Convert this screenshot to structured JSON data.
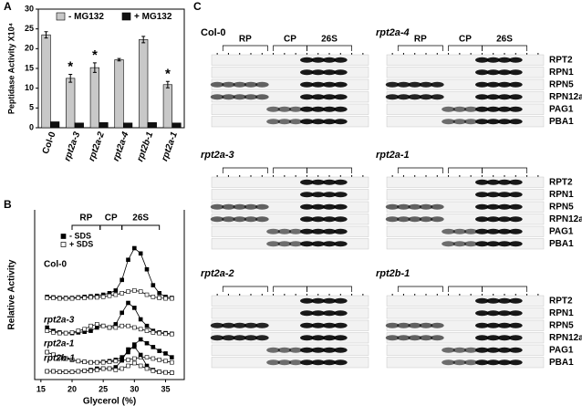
{
  "panel_labels": [
    "A",
    "B",
    "C"
  ],
  "chart_data": [
    {
      "type": "bar",
      "ylabel": "Peptidase Activity X10⁴",
      "categories": [
        "Col-0",
        "rpt2a-3",
        "rpt2a-2",
        "rpt2a-4",
        "rpt2b-1",
        "rpt2a-1"
      ],
      "series": [
        {
          "name": "- MG132",
          "color": "#c8c8c8",
          "values": [
            23.5,
            12.5,
            15.2,
            17.2,
            22.3,
            10.9
          ],
          "errors": [
            0.8,
            1.0,
            1.2,
            0.3,
            0.8,
            0.8
          ]
        },
        {
          "name": "+ MG132",
          "color": "#111111",
          "values": [
            1.5,
            1.2,
            1.3,
            1.2,
            1.3,
            1.2
          ]
        }
      ],
      "significance": [
        null,
        "*",
        "*",
        null,
        null,
        "*"
      ],
      "ylim": [
        0,
        30
      ],
      "yticks": [
        0,
        5,
        10,
        15,
        20,
        25,
        30
      ]
    },
    {
      "type": "line",
      "xlabel": "Glycerol (%)",
      "ylabel": "Relative Activity",
      "fraction_labels": [
        "RP",
        "CP",
        "26S"
      ],
      "legend": [
        "- SDS",
        "+ SDS"
      ],
      "x": [
        16,
        17,
        18,
        19,
        20,
        21,
        22,
        23,
        24,
        25,
        26,
        27,
        28,
        29,
        30,
        31,
        32,
        33,
        34,
        35,
        36
      ],
      "xlim": [
        14,
        38
      ],
      "xticks": [
        15,
        20,
        25,
        30,
        35
      ],
      "ylim": [
        0,
        1
      ],
      "panels": [
        {
          "label": "Col-0",
          "series": [
            {
              "marker": "filled",
              "values": [
                0.08,
                0.07,
                0.06,
                0.06,
                0.06,
                0.07,
                0.08,
                0.09,
                0.1,
                0.12,
                0.15,
                0.2,
                0.4,
                0.78,
                1.0,
                0.9,
                0.6,
                0.3,
                0.15,
                0.08,
                0.06
              ]
            },
            {
              "marker": "open",
              "values": [
                0.06,
                0.06,
                0.05,
                0.05,
                0.05,
                0.06,
                0.06,
                0.07,
                0.07,
                0.08,
                0.1,
                0.12,
                0.15,
                0.18,
                0.2,
                0.18,
                0.12,
                0.08,
                0.06,
                0.05,
                0.05
              ]
            }
          ]
        },
        {
          "label": "rpt2a-3",
          "series": [
            {
              "marker": "filled",
              "values": [
                0.25,
                0.15,
                0.1,
                0.08,
                0.08,
                0.1,
                0.12,
                0.15,
                0.25,
                0.3,
                0.25,
                0.35,
                0.7,
                1.0,
                0.85,
                0.5,
                0.3,
                0.15,
                0.1,
                0.08,
                0.06
              ]
            },
            {
              "marker": "open",
              "values": [
                0.15,
                0.1,
                0.08,
                0.08,
                0.1,
                0.15,
                0.2,
                0.3,
                0.35,
                0.3,
                0.25,
                0.25,
                0.3,
                0.3,
                0.25,
                0.2,
                0.15,
                0.1,
                0.08,
                0.06,
                0.05
              ]
            }
          ]
        },
        {
          "label": "rpt2a-1",
          "series": [
            {
              "marker": "filled",
              "values": [
                0.5,
                0.4,
                0.3,
                0.25,
                0.2,
                0.15,
                0.12,
                0.1,
                0.1,
                0.12,
                0.15,
                0.2,
                0.3,
                0.5,
                0.8,
                1.0,
                0.85,
                0.7,
                0.55,
                0.45,
                0.3
              ]
            },
            {
              "marker": "open",
              "values": [
                0.5,
                0.4,
                0.3,
                0.25,
                0.2,
                0.15,
                0.12,
                0.1,
                0.1,
                0.1,
                0.12,
                0.15,
                0.18,
                0.2,
                0.25,
                0.3,
                0.3,
                0.25,
                0.2,
                0.15,
                0.1
              ]
            }
          ]
        },
        {
          "label": "rpt2b-1",
          "series": [
            {
              "marker": "filled",
              "values": [
                0.1,
                0.1,
                0.08,
                0.08,
                0.08,
                0.1,
                0.12,
                0.15,
                0.2,
                0.2,
                0.2,
                0.25,
                0.5,
                0.9,
                1.0,
                0.7,
                0.3,
                0.15,
                0.08,
                0.06,
                0.05
              ]
            },
            {
              "marker": "open",
              "values": [
                0.1,
                0.1,
                0.08,
                0.08,
                0.08,
                0.1,
                0.12,
                0.12,
                0.15,
                0.2,
                0.2,
                0.15,
                0.2,
                0.3,
                0.4,
                0.3,
                0.2,
                0.12,
                0.08,
                0.06,
                0.05
              ]
            }
          ]
        }
      ]
    }
  ],
  "blots": {
    "panels": [
      "Col-0",
      "rpt2a-4",
      "rpt2a-3",
      "rpt2a-1",
      "rpt2a-2",
      "rpt2b-1"
    ],
    "fraction_labels": [
      "RP",
      "CP",
      "26S"
    ],
    "proteins": [
      "RPT2",
      "RPN1",
      "RPN5",
      "RPN12a",
      "PAG1",
      "PBA1"
    ]
  }
}
